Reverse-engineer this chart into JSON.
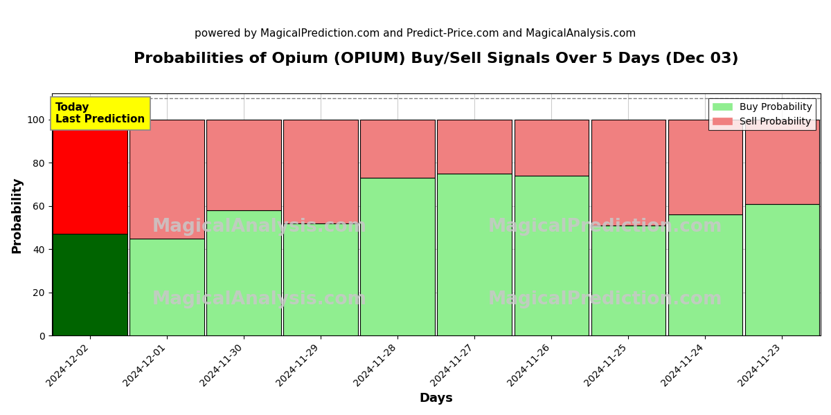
{
  "title": "Probabilities of Opium (OPIUM) Buy/Sell Signals Over 5 Days (Dec 03)",
  "subtitle": "powered by MagicalPrediction.com and Predict-Price.com and MagicalAnalysis.com",
  "xlabel": "Days",
  "ylabel": "Probability",
  "categories": [
    "2024-12-02",
    "2024-12-01",
    "2024-11-30",
    "2024-11-29",
    "2024-11-28",
    "2024-11-27",
    "2024-11-26",
    "2024-11-25",
    "2024-11-24",
    "2024-11-23"
  ],
  "buy_values": [
    47,
    45,
    58,
    52,
    73,
    75,
    74,
    51,
    56,
    61
  ],
  "sell_values": [
    53,
    55,
    42,
    48,
    27,
    25,
    26,
    49,
    44,
    39
  ],
  "buy_colors": [
    "#006400",
    "#90EE90",
    "#90EE90",
    "#90EE90",
    "#90EE90",
    "#90EE90",
    "#90EE90",
    "#90EE90",
    "#90EE90",
    "#90EE90"
  ],
  "sell_colors": [
    "#FF0000",
    "#F08080",
    "#F08080",
    "#F08080",
    "#F08080",
    "#F08080",
    "#F08080",
    "#F08080",
    "#F08080",
    "#F08080"
  ],
  "bar_edgecolor": "black",
  "bar_linewidth": 0.8,
  "ylim": [
    0,
    112
  ],
  "yticks": [
    0,
    20,
    40,
    60,
    80,
    100
  ],
  "dashed_line_y": 110,
  "legend_buy_color": "#90EE90",
  "legend_sell_color": "#F08080",
  "today_box_color": "#FFFF00",
  "today_label": "Today\nLast Prediction",
  "grid_color": "#cccccc",
  "title_fontsize": 16,
  "subtitle_fontsize": 11,
  "axis_label_fontsize": 13,
  "tick_fontsize": 10,
  "bar_width": 0.97
}
